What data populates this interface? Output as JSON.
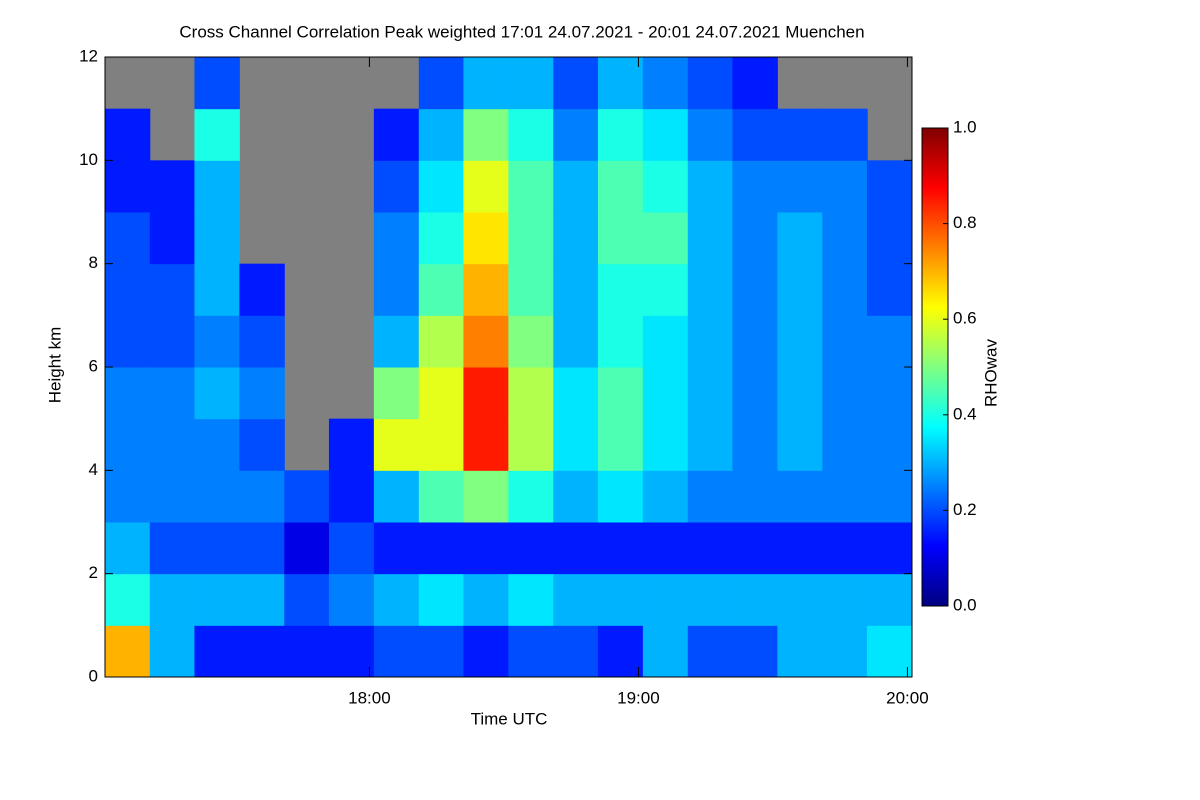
{
  "chart_data": {
    "type": "heatmap",
    "title": "Cross Channel Correlation Peak weighted   17:01 24.07.2021 - 20:01 24.07.2021 Muenchen",
    "xlabel": "Time UTC",
    "ylabel": "Height km",
    "colorbar_label": "RHOwav",
    "xlim": [
      17.017,
      20.017
    ],
    "xticks": [
      {
        "value": 18,
        "label": "18:00"
      },
      {
        "value": 19,
        "label": "19:00"
      },
      {
        "value": 20,
        "label": "20:00"
      }
    ],
    "ylim": [
      0,
      12
    ],
    "yticks": [
      0,
      2,
      4,
      6,
      8,
      10,
      12
    ],
    "clim": [
      0,
      1
    ],
    "cticks": [
      {
        "value": 0,
        "label": "0.0"
      },
      {
        "value": 0.2,
        "label": "0.2"
      },
      {
        "value": 0.4,
        "label": "0.4"
      },
      {
        "value": 0.6,
        "label": "0.6"
      },
      {
        "value": 0.8,
        "label": "0.8"
      },
      {
        "value": 1,
        "label": "1.0"
      }
    ],
    "colormap": [
      "#000080",
      "#0000ff",
      "#0080ff",
      "#00ffff",
      "#80ff80",
      "#ffff00",
      "#ff8000",
      "#ff0000",
      "#800000"
    ],
    "missing_color": "#808080",
    "x": [
      17.1,
      17.267,
      17.433,
      17.6,
      17.767,
      17.933,
      18.1,
      18.267,
      18.433,
      18.6,
      18.767,
      18.933,
      19.1,
      19.267,
      19.433,
      19.6,
      19.767,
      19.933
    ],
    "y": [
      0.5,
      1.5,
      2.5,
      3.5,
      4.5,
      5.5,
      6.5,
      7.5,
      8.5,
      9.5,
      10.5,
      11.5
    ],
    "values": [
      [
        0.7,
        0.4,
        0.3,
        0.25,
        0.25,
        0.25,
        0.2,
        0.2,
        0.2,
        0.15,
        0.15,
        null
      ],
      [
        0.3,
        0.3,
        0.2,
        0.25,
        0.25,
        0.25,
        0.2,
        0.2,
        0.15,
        0.15,
        null,
        null
      ],
      [
        0.15,
        0.3,
        0.2,
        0.25,
        0.25,
        0.3,
        0.25,
        0.3,
        0.3,
        0.3,
        0.4,
        0.2
      ],
      [
        0.15,
        0.3,
        0.2,
        0.25,
        0.2,
        0.25,
        0.2,
        0.15,
        null,
        null,
        null,
        null
      ],
      [
        0.15,
        0.2,
        0.1,
        0.2,
        null,
        null,
        null,
        null,
        null,
        null,
        null,
        null
      ],
      [
        0.15,
        0.25,
        0.2,
        0.15,
        0.15,
        null,
        null,
        null,
        null,
        null,
        null,
        null
      ],
      [
        0.2,
        0.3,
        0.15,
        0.3,
        0.6,
        0.5,
        0.3,
        0.25,
        0.25,
        0.2,
        0.15,
        null
      ],
      [
        0.2,
        0.35,
        0.15,
        0.45,
        0.6,
        0.6,
        0.55,
        0.45,
        0.4,
        0.35,
        0.3,
        0.2
      ],
      [
        0.15,
        0.3,
        0.15,
        0.5,
        0.85,
        0.85,
        0.75,
        0.7,
        0.65,
        0.6,
        0.5,
        0.3
      ],
      [
        0.2,
        0.35,
        0.15,
        0.4,
        0.55,
        0.55,
        0.5,
        0.45,
        0.45,
        0.45,
        0.4,
        0.3
      ],
      [
        0.2,
        0.3,
        0.15,
        0.3,
        0.35,
        0.35,
        0.3,
        0.3,
        0.3,
        0.3,
        0.25,
        0.2
      ],
      [
        0.15,
        0.3,
        0.15,
        0.35,
        0.45,
        0.45,
        0.4,
        0.4,
        0.45,
        0.45,
        0.4,
        0.3
      ],
      [
        0.3,
        0.3,
        0.15,
        0.3,
        0.35,
        0.35,
        0.35,
        0.4,
        0.45,
        0.4,
        0.35,
        0.25
      ],
      [
        0.2,
        0.3,
        0.15,
        0.25,
        0.3,
        0.3,
        0.3,
        0.3,
        0.3,
        0.3,
        0.25,
        0.2
      ],
      [
        0.2,
        0.3,
        0.15,
        0.25,
        0.25,
        0.25,
        0.25,
        0.25,
        0.25,
        0.25,
        0.2,
        0.15
      ],
      [
        0.3,
        0.3,
        0.15,
        0.25,
        0.3,
        0.3,
        0.3,
        0.3,
        0.3,
        0.25,
        0.2,
        null
      ],
      [
        0.3,
        0.3,
        0.15,
        0.25,
        0.25,
        0.25,
        0.25,
        0.25,
        0.25,
        0.25,
        0.2,
        null
      ],
      [
        0.35,
        0.3,
        0.15,
        0.25,
        0.25,
        0.25,
        0.25,
        0.2,
        0.2,
        0.2,
        null,
        null
      ]
    ]
  }
}
